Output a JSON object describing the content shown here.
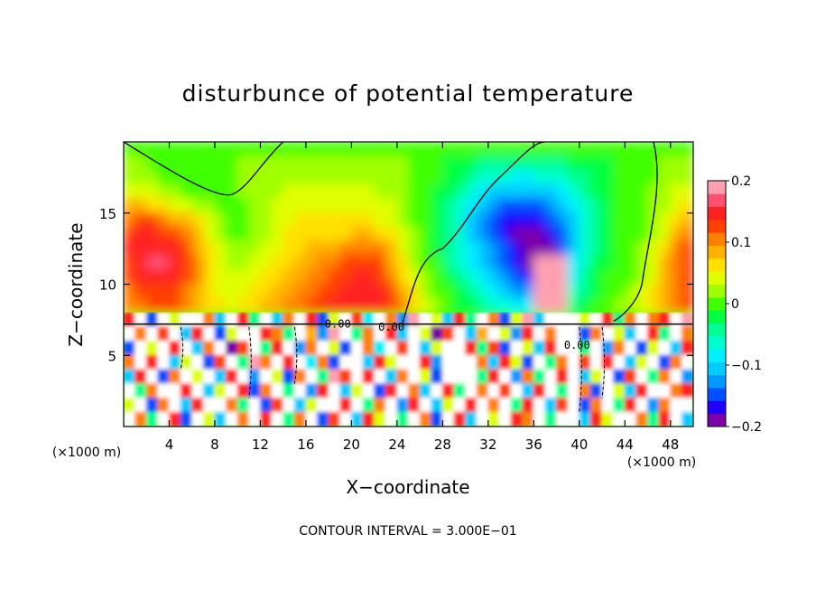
{
  "chart_data": {
    "type": "heatmap",
    "title": "disturbunce of potential temperature",
    "xlabel": "X−coordinate",
    "ylabel": "Z−coordinate",
    "x_unit": "(×1000 m)",
    "y_unit": "(×1000 m)",
    "xlim": [
      0,
      50
    ],
    "ylim": [
      0,
      20
    ],
    "x_ticks": [
      4,
      8,
      12,
      16,
      20,
      24,
      28,
      32,
      36,
      40,
      44,
      48
    ],
    "y_ticks": [
      5,
      10,
      15
    ],
    "x_tick_labels": [
      "4",
      "8",
      "12",
      "16",
      "20",
      "24",
      "28",
      "32",
      "36",
      "40",
      "44",
      "48"
    ],
    "y_tick_labels": [
      "5",
      "10",
      "15"
    ],
    "colorbar": {
      "min": -0.2,
      "max": 0.2,
      "ticks": [
        0.2,
        0.1,
        0,
        -0.1,
        -0.2
      ],
      "tick_labels": [
        "0.2",
        "0.1",
        "0",
        "−0.1",
        "−0.2"
      ],
      "colors": [
        "#7a00a8",
        "#1e00ff",
        "#0050ff",
        "#0099ff",
        "#00ccff",
        "#00f0ff",
        "#00ffd0",
        "#00ff90",
        "#00ff40",
        "#40ff00",
        "#a0ff00",
        "#e0ff00",
        "#ffe000",
        "#ffb000",
        "#ff8000",
        "#ff4000",
        "#ff2020",
        "#ff5070",
        "#ffa0b0"
      ]
    },
    "contour_interval_text": "CONTOUR INTERVAL = 3.000E−01",
    "contour_labels": [
      "0.00",
      "0.00",
      "0.00"
    ],
    "contour_label_positions": [
      [
        18.8,
        7.2
      ],
      [
        23.5,
        7.0
      ],
      [
        39.8,
        5.7
      ]
    ],
    "field": {
      "nx": 50,
      "nz": 20,
      "x_centers_note": "",
      "rows_top_to_bottom": [
        [
          0,
          0,
          0,
          0,
          0,
          0,
          0,
          0,
          0,
          0,
          0,
          0,
          0,
          0,
          0,
          0,
          0,
          0,
          0,
          0,
          0,
          0,
          0,
          0,
          0,
          0,
          0,
          0,
          0,
          0,
          0,
          0,
          0,
          0,
          0,
          0,
          0,
          0,
          0,
          0,
          0,
          0,
          0,
          0,
          0,
          0,
          0,
          0,
          0,
          0
        ],
        [
          0.02,
          0.02,
          0.01,
          0,
          0,
          0,
          0,
          0,
          0,
          0.01,
          0.02,
          0.02,
          0.02,
          0.02,
          0.02,
          0.02,
          0.02,
          0.02,
          0.02,
          0.02,
          0.02,
          0.02,
          0.02,
          0.02,
          0.02,
          0.01,
          0,
          -0.01,
          -0.02,
          -0.02,
          -0.03,
          -0.04,
          -0.04,
          -0.05,
          -0.05,
          -0.05,
          -0.05,
          -0.04,
          -0.04,
          -0.03,
          -0.03,
          -0.02,
          -0.02,
          -0.01,
          0,
          0,
          0.01,
          0.02,
          0.02,
          0.02
        ],
        [
          0.03,
          0.03,
          0.02,
          0.01,
          0.01,
          0,
          0,
          0,
          0,
          0.01,
          0.02,
          0.02,
          0.02,
          0.02,
          0.03,
          0.03,
          0.03,
          0.03,
          0.03,
          0.03,
          0.03,
          0.03,
          0.03,
          0.02,
          0.02,
          0.01,
          0,
          -0.01,
          -0.02,
          -0.03,
          -0.05,
          -0.06,
          -0.07,
          -0.07,
          -0.08,
          -0.08,
          -0.07,
          -0.07,
          -0.06,
          -0.05,
          -0.04,
          -0.03,
          -0.02,
          -0.01,
          0,
          0,
          0.01,
          0.02,
          0.03,
          0.03
        ],
        [
          0.05,
          0.05,
          0.04,
          0.03,
          0.02,
          0.01,
          0.01,
          0,
          0,
          0.01,
          0.02,
          0.02,
          0.02,
          0.03,
          0.04,
          0.04,
          0.04,
          0.04,
          0.04,
          0.04,
          0.04,
          0.04,
          0.03,
          0.03,
          0.02,
          0.01,
          0,
          -0.02,
          -0.03,
          -0.05,
          -0.07,
          -0.09,
          -0.1,
          -0.11,
          -0.11,
          -0.11,
          -0.11,
          -0.1,
          -0.09,
          -0.07,
          -0.05,
          -0.03,
          -0.02,
          -0.01,
          0,
          0,
          0.02,
          0.03,
          0.04,
          0.05
        ],
        [
          0.08,
          0.08,
          0.07,
          0.06,
          0.05,
          0.04,
          0.03,
          0.02,
          0.01,
          0.01,
          0.01,
          0.02,
          0.03,
          0.04,
          0.05,
          0.05,
          0.05,
          0.05,
          0.05,
          0.05,
          0.05,
          0.05,
          0.04,
          0.04,
          0.03,
          0.01,
          0,
          -0.02,
          -0.04,
          -0.06,
          -0.08,
          -0.11,
          -0.13,
          -0.14,
          -0.15,
          -0.15,
          -0.14,
          -0.13,
          -0.11,
          -0.09,
          -0.06,
          -0.04,
          -0.02,
          -0.01,
          0,
          0.01,
          0.02,
          0.03,
          0.05,
          0.06
        ],
        [
          0.11,
          0.12,
          0.12,
          0.11,
          0.09,
          0.08,
          0.06,
          0.04,
          0.02,
          0.01,
          0.01,
          0.02,
          0.03,
          0.04,
          0.05,
          0.06,
          0.06,
          0.06,
          0.06,
          0.06,
          0.06,
          0.06,
          0.05,
          0.04,
          0.03,
          0.01,
          0,
          -0.02,
          -0.04,
          -0.07,
          -0.1,
          -0.12,
          -0.14,
          -0.16,
          -0.17,
          -0.17,
          -0.16,
          -0.15,
          -0.13,
          -0.1,
          -0.07,
          -0.04,
          -0.02,
          -0.01,
          0,
          0.01,
          0.02,
          0.04,
          0.06,
          0.08
        ],
        [
          0.13,
          0.14,
          0.14,
          0.13,
          0.12,
          0.1,
          0.08,
          0.05,
          0.03,
          0.01,
          0.01,
          0.02,
          0.03,
          0.05,
          0.06,
          0.07,
          0.07,
          0.07,
          0.07,
          0.07,
          0.08,
          0.08,
          0.07,
          0.06,
          0.04,
          0.02,
          0,
          -0.02,
          -0.05,
          -0.07,
          -0.1,
          -0.12,
          -0.14,
          -0.16,
          -0.18,
          -0.19,
          -0.19,
          -0.17,
          -0.15,
          -0.11,
          -0.07,
          -0.04,
          -0.02,
          -0.01,
          0,
          0.01,
          0.03,
          0.05,
          0.08,
          0.1
        ],
        [
          0.14,
          0.15,
          0.15,
          0.15,
          0.14,
          0.12,
          0.09,
          0.06,
          0.04,
          0.02,
          0.02,
          0.02,
          0.04,
          0.05,
          0.06,
          0.07,
          0.08,
          0.08,
          0.09,
          0.1,
          0.11,
          0.11,
          0.1,
          0.08,
          0.05,
          0.03,
          0,
          -0.02,
          -0.05,
          -0.07,
          -0.09,
          -0.11,
          -0.13,
          -0.15,
          -0.17,
          -0.19,
          -0.2,
          -0.18,
          -0.14,
          -0.1,
          -0.07,
          -0.04,
          -0.02,
          -0.01,
          0,
          0.02,
          0.04,
          0.07,
          0.1,
          0.12
        ],
        [
          0.13,
          0.15,
          0.16,
          0.16,
          0.15,
          0.13,
          0.1,
          0.07,
          0.05,
          0.03,
          0.03,
          0.04,
          0.05,
          0.06,
          0.07,
          0.08,
          0.09,
          0.1,
          0.11,
          0.12,
          0.13,
          0.13,
          0.12,
          0.09,
          0.06,
          0.03,
          0.01,
          -0.01,
          -0.04,
          -0.06,
          -0.08,
          -0.1,
          -0.12,
          -0.14,
          -0.16,
          -0.19,
          0.2,
          0.2,
          0.2,
          -0.09,
          -0.06,
          -0.03,
          -0.02,
          0,
          0.01,
          0.02,
          0.05,
          0.08,
          0.11,
          0.13
        ],
        [
          0.12,
          0.14,
          0.15,
          0.15,
          0.14,
          0.12,
          0.1,
          0.07,
          0.05,
          0.04,
          0.04,
          0.05,
          0.06,
          0.07,
          0.08,
          0.09,
          0.1,
          0.11,
          0.12,
          0.13,
          0.14,
          0.14,
          0.13,
          0.1,
          0.07,
          0.04,
          0.02,
          0,
          -0.03,
          -0.05,
          -0.07,
          -0.09,
          -0.11,
          -0.13,
          -0.15,
          -0.17,
          0.2,
          0.2,
          0.2,
          -0.08,
          -0.05,
          -0.03,
          -0.01,
          0,
          0.01,
          0.03,
          0.05,
          0.08,
          0.11,
          0.13
        ],
        [
          0.11,
          0.12,
          0.13,
          0.13,
          0.13,
          0.11,
          0.09,
          0.07,
          0.05,
          0.04,
          0.05,
          0.06,
          0.07,
          0.08,
          0.09,
          0.1,
          0.11,
          0.12,
          0.13,
          0.14,
          0.15,
          0.15,
          0.14,
          0.12,
          0.09,
          0.06,
          0.03,
          0.01,
          -0.01,
          -0.03,
          -0.05,
          -0.07,
          -0.09,
          -0.11,
          -0.12,
          -0.13,
          0.2,
          0.2,
          0.2,
          -0.06,
          -0.04,
          -0.02,
          -0.01,
          0.01,
          0.02,
          0.04,
          0.06,
          0.08,
          0.1,
          0.12
        ],
        [
          0.1,
          0.11,
          0.12,
          0.12,
          0.12,
          0.11,
          0.09,
          0.07,
          0.06,
          0.05,
          0.06,
          0.07,
          0.08,
          0.09,
          0.1,
          0.11,
          0.12,
          0.13,
          0.14,
          0.15,
          0.15,
          0.15,
          0.15,
          0.13,
          0.1,
          0.07,
          0.04,
          0.02,
          0,
          -0.02,
          -0.03,
          -0.05,
          -0.06,
          -0.07,
          -0.08,
          -0.09,
          0.2,
          0.2,
          0.2,
          -0.04,
          -0.02,
          -0.01,
          0,
          0.02,
          0.03,
          0.05,
          0.07,
          0.08,
          0.1,
          0.12
        ],
        [
          0.15,
          0.2,
          -0.15,
          0.2,
          0.05,
          -0.2,
          0.2,
          0.1,
          -0.1,
          0.2,
          0.15,
          -0.05,
          0.2,
          -0.1,
          0.1,
          0.2,
          0.15,
          -0.15,
          0.05,
          0.2,
          0.12,
          -0.08,
          0.2,
          0.1,
          -0.12,
          0.18,
          0.2,
          0.05,
          -0.1,
          0.15,
          -0.05,
          0.2,
          0.1,
          -0.15,
          0.05,
          0.18,
          -0.1,
          0.2,
          0.2,
          0.2,
          0.05,
          0.2,
          0.15,
          -0.05,
          0.1,
          0.2,
          0.1,
          0.15,
          0.2,
          0.18
        ],
        [
          0.2,
          0.1,
          -0.2,
          0.12,
          0.2,
          -0.1,
          0.15,
          0.2,
          -0.15,
          0.05,
          0.2,
          -0.2,
          0.15,
          0.1,
          -0.05,
          0.2,
          0.08,
          -0.12,
          0.18,
          0.2,
          -0.05,
          0.1,
          0.2,
          0.15,
          -0.1,
          0.2,
          0.05,
          -0.18,
          0.12,
          0.2,
          -0.1,
          0.08,
          0.2,
          0.05,
          -0.12,
          0.15,
          -0.2,
          0.1,
          0.2,
          0.2,
          -0.15,
          0.1,
          0.2,
          0.05,
          -0.1,
          0.2,
          0.15,
          -0.05,
          0.2,
          0.1
        ],
        [
          -0.15,
          0.2,
          0.05,
          -0.2,
          0.15,
          0.2,
          -0.1,
          0.1,
          0.2,
          -0.18,
          0.12,
          0.2,
          -0.05,
          0.15,
          0.2,
          -0.12,
          0.1,
          0.2,
          0.05,
          -0.15,
          0.2,
          0.1,
          -0.08,
          0.2,
          0.12,
          0.2,
          -0.1,
          0.05,
          0.2,
          0.2,
          0.15,
          -0.05,
          0.12,
          -0.15,
          0.2,
          0.05,
          -0.1,
          0.15,
          0.2,
          0.2,
          -0.05,
          0.2,
          -0.12,
          0.1,
          0.2,
          -0.15,
          0.05,
          0.2,
          -0.1,
          0.15
        ],
        [
          0.1,
          -0.2,
          0.15,
          0.2,
          -0.1,
          0.05,
          0.2,
          -0.15,
          0.12,
          0.2,
          -0.05,
          0.18,
          0.1,
          -0.2,
          0.15,
          0.2,
          -0.08,
          0.1,
          -0.15,
          0.2,
          0.2,
          -0.1,
          0.15,
          0.05,
          0.2,
          0.2,
          0.15,
          -0.12,
          0.2,
          0.2,
          0.2,
          0.1,
          -0.1,
          0.15,
          0.05,
          -0.15,
          0.2,
          -0.05,
          0.1,
          0.2,
          0.12,
          -0.2,
          0.15,
          0.2,
          -0.1,
          0.05,
          0.2,
          -0.15,
          0.1,
          0.2
        ],
        [
          -0.1,
          0.15,
          0.2,
          -0.15,
          0.1,
          -0.2,
          0.05,
          0.2,
          -0.1,
          0.15,
          0.2,
          -0.12,
          0.2,
          0.05,
          -0.15,
          0.1,
          0.2,
          -0.05,
          0.18,
          0.12,
          -0.2,
          0.15,
          0.2,
          -0.1,
          0.1,
          0.2,
          0.05,
          -0.15,
          0.2,
          0.2,
          0.2,
          -0.05,
          0.15,
          0.2,
          -0.12,
          0.1,
          -0.05,
          0.2,
          0.15,
          0.2,
          -0.1,
          0.05,
          0.2,
          -0.15,
          0.12,
          0.2,
          -0.05,
          0.1,
          0.2,
          -0.12
        ],
        [
          0.2,
          -0.05,
          0.1,
          0.2,
          -0.2,
          0.15,
          0.2,
          -0.1,
          0.05,
          0.2,
          0.15,
          -0.15,
          0.1,
          0.2,
          -0.05,
          0.2,
          -0.12,
          0.15,
          0.2,
          -0.1,
          0.05,
          0.2,
          -0.15,
          0.15,
          0.2,
          0.1,
          -0.1,
          0.2,
          0.15,
          -0.05,
          0.2,
          0.1,
          -0.2,
          0.12,
          0.2,
          -0.1,
          0.15,
          0.2,
          -0.05,
          0.2,
          0.1,
          -0.15,
          0.2,
          0.05,
          -0.1,
          0.15,
          0.2,
          -0.2,
          0.1,
          0.15
        ],
        [
          0.05,
          0.2,
          -0.15,
          0.1,
          0.2,
          -0.1,
          0.15,
          -0.2,
          0.2,
          0.1,
          -0.05,
          0.2,
          -0.15,
          0.12,
          0.2,
          -0.1,
          0.05,
          0.2,
          -0.2,
          0.15,
          0.2,
          -0.05,
          0.1,
          0.2,
          -0.12,
          0.15,
          0.2,
          -0.1,
          0.05,
          0.2,
          0.15,
          -0.2,
          0.1,
          0.2,
          -0.05,
          0.15,
          0.2,
          -0.1,
          0.12,
          0.2,
          -0.15,
          0.1,
          0.2,
          -0.05,
          0.15,
          0.2,
          -0.12,
          0.1,
          0.2,
          -0.2
        ],
        [
          0.2,
          0.1,
          -0.05,
          0.2,
          0.15,
          -0.15,
          0.2,
          0.05,
          -0.1,
          0.2,
          0.1,
          -0.2,
          0.15,
          0.2,
          -0.05,
          0.1,
          0.2,
          -0.15,
          0.12,
          0.2,
          -0.1,
          0.15,
          0.05,
          0.2,
          -0.05,
          0.2,
          0.1,
          -0.15,
          0.2,
          0.15,
          -0.1,
          0.2,
          0.05,
          -0.2,
          0.15,
          0.1,
          0.2,
          -0.05,
          0.2,
          0.2,
          -0.1,
          0.15,
          0.05,
          -0.2,
          0.2,
          0.1,
          -0.05,
          0.15,
          0.2,
          -0.1
        ]
      ]
    }
  }
}
